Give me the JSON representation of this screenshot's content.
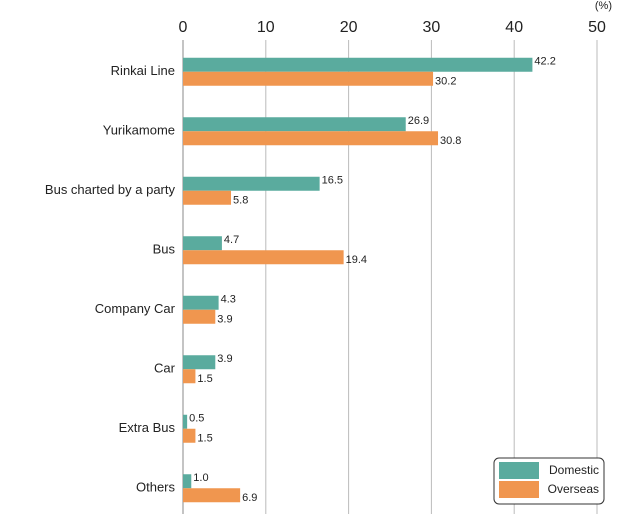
{
  "chart_data": {
    "type": "hbar",
    "unit": "(%)",
    "categories": [
      "Rinkai Line",
      "Yurikamome",
      "Bus charted by a party",
      "Bus",
      "Company Car",
      "Car",
      "Extra Bus",
      "Others"
    ],
    "series": [
      {
        "name": "Domestic",
        "color": "#5aab9e",
        "values": [
          42.2,
          26.9,
          16.5,
          4.7,
          4.3,
          3.9,
          0.5,
          1.0
        ],
        "value_labels": [
          "42.2",
          "26.9",
          "16.5",
          "4.7",
          "4.3",
          "3.9",
          "0.5",
          "1.0"
        ]
      },
      {
        "name": "Overseas",
        "color": "#f0964f",
        "values": [
          30.2,
          30.8,
          5.8,
          19.4,
          3.9,
          1.5,
          1.5,
          6.9
        ],
        "value_labels": [
          "30.2",
          "30.8",
          "5.8",
          "19.4",
          "3.9",
          "1.5",
          "1.5",
          "6.9"
        ]
      }
    ],
    "xlim": [
      0,
      50
    ],
    "xticks": [
      0,
      10,
      20,
      30,
      40,
      50
    ],
    "grid": true,
    "legend": "lower right"
  }
}
